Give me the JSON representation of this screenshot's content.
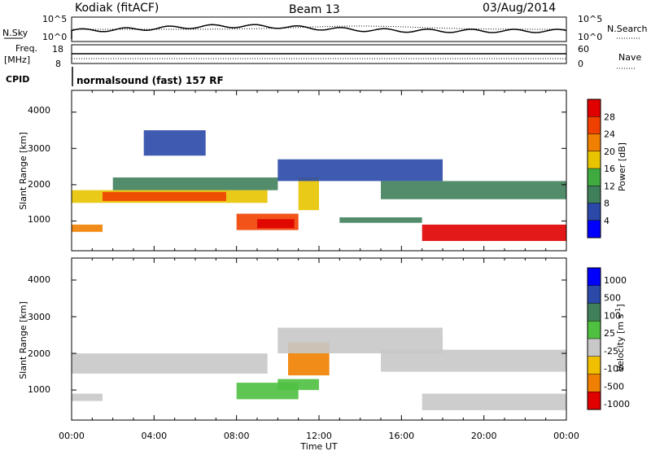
{
  "header": {
    "station": "Kodiak (fitACF)",
    "beam": "Beam 13",
    "date": "03/Aug/2014"
  },
  "summary_panels": {
    "nsky_label": "N.Sky",
    "nsky_ticks": [
      "10^5",
      "10^0"
    ],
    "nsearch_label": "N.Search",
    "nsearch_ticks": [
      "10^5",
      "10^0"
    ],
    "freq_label_line1": "Freq.",
    "freq_label_line2": "[MHz]",
    "freq_ticks": [
      "18",
      "8"
    ],
    "nave_label": "Nave",
    "nave_ticks": [
      "60",
      "0"
    ],
    "cpid_label": "CPID",
    "cpid_text": "normalsound (fast) 157 RF"
  },
  "colors": {
    "power": [
      "#0000ff",
      "#2a49a8",
      "#3f7f5a",
      "#3faa3f",
      "#e8c400",
      "#f08000",
      "#f04000",
      "#e00000"
    ],
    "velocity": [
      "#0000ff",
      "#2a49a8",
      "#3f7f5a",
      "#4fc040",
      "#c8c8c8",
      "#f0c000",
      "#f08000",
      "#f04000",
      "#e00000"
    ]
  },
  "chart_data": [
    {
      "type": "heatmap",
      "panel": "power",
      "xlabel": "",
      "ylabel": "Slant Range [km]",
      "xlim": [
        "00:00",
        "24:00"
      ],
      "ylim": [
        180,
        4600
      ],
      "yticks": [
        "1000",
        "2000",
        "3000",
        "4000"
      ],
      "colorbar": {
        "label": "Power [dB]",
        "ticks": [
          "4",
          "8",
          "12",
          "16",
          "20",
          "24",
          "28"
        ],
        "range": [
          0,
          32
        ]
      },
      "regions": [
        {
          "t0": 0.0,
          "t1": 9.5,
          "r0": 1500,
          "r1": 1850,
          "value": 18
        },
        {
          "t0": 1.5,
          "t1": 7.5,
          "r0": 1550,
          "r1": 1800,
          "value": 24
        },
        {
          "t0": 8.0,
          "t1": 11.0,
          "r0": 750,
          "r1": 1200,
          "value": 24
        },
        {
          "t0": 9.0,
          "t1": 10.8,
          "r0": 800,
          "r1": 1050,
          "value": 30
        },
        {
          "t0": 11.0,
          "t1": 12.0,
          "r0": 1300,
          "r1": 2200,
          "value": 16
        },
        {
          "t0": 13.0,
          "t1": 17.0,
          "r0": 950,
          "r1": 1100,
          "value": 10
        },
        {
          "t0": 17.0,
          "t1": 24.0,
          "r0": 450,
          "r1": 900,
          "value": 28
        },
        {
          "t0": 0.0,
          "t1": 1.5,
          "r0": 700,
          "r1": 900,
          "value": 22
        },
        {
          "t0": 2.0,
          "t1": 10.0,
          "r0": 1850,
          "r1": 2200,
          "value": 8
        },
        {
          "t0": 10.0,
          "t1": 18.0,
          "r0": 2100,
          "r1": 2700,
          "value": 6
        },
        {
          "t0": 15.0,
          "t1": 24.0,
          "r0": 1600,
          "r1": 2100,
          "value": 8
        },
        {
          "t0": 3.5,
          "t1": 6.5,
          "r0": 2800,
          "r1": 3500,
          "value": 6
        }
      ]
    },
    {
      "type": "heatmap",
      "panel": "velocity",
      "xlabel": "Time UT",
      "ylabel": "Slant Range [km]",
      "xlim": [
        "00:00",
        "24:00"
      ],
      "ylim": [
        180,
        4600
      ],
      "yticks": [
        "1000",
        "2000",
        "3000",
        "4000"
      ],
      "xticks": [
        "00:00",
        "04:00",
        "08:00",
        "12:00",
        "16:00",
        "20:00",
        "00:00"
      ],
      "colorbar": {
        "label": "Velocity [m s^-1]",
        "ticks": [
          "1000",
          "500",
          "100",
          "25",
          "-25",
          "-100",
          "-500",
          "-1000"
        ]
      },
      "regions": [
        {
          "t0": 0.0,
          "t1": 9.5,
          "r0": 1450,
          "r1": 2000,
          "value": 0
        },
        {
          "t0": 8.0,
          "t1": 11.0,
          "r0": 750,
          "r1": 1200,
          "value": 60
        },
        {
          "t0": 10.5,
          "t1": 12.5,
          "r0": 1400,
          "r1": 2300,
          "value": -300
        },
        {
          "t0": 10.0,
          "t1": 12.0,
          "r0": 1000,
          "r1": 1300,
          "value": 60
        },
        {
          "t0": 10.0,
          "t1": 18.0,
          "r0": 2000,
          "r1": 2700,
          "value": 0
        },
        {
          "t0": 17.0,
          "t1": 24.0,
          "r0": 450,
          "r1": 900,
          "value": 0
        },
        {
          "t0": 15.0,
          "t1": 24.0,
          "r0": 1500,
          "r1": 2100,
          "value": 0
        },
        {
          "t0": 0.0,
          "t1": 1.5,
          "r0": 700,
          "r1": 900,
          "value": 0
        }
      ]
    }
  ]
}
